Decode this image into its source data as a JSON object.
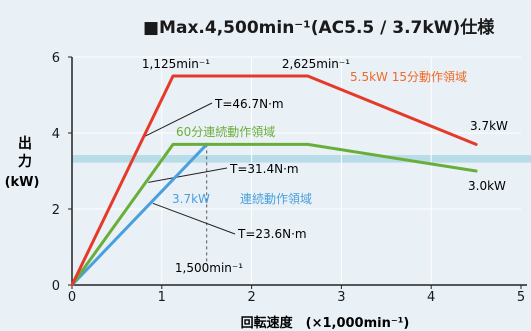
{
  "chart_data": {
    "type": "line",
    "title": "■Max.4,500min⁻¹(AC5.5 / 3.7kW)仕様",
    "ylabel_line1": "出",
    "ylabel_line2": "力",
    "ylabel_unit": "(kW)",
    "xlabel": "回転速度　(×1,000min⁻¹)",
    "xlim": [
      0,
      5
    ],
    "ylim": [
      0,
      6
    ],
    "x_ticks": [
      "0",
      "1",
      "2",
      "3",
      "4",
      "5"
    ],
    "y_ticks": [
      "0",
      "2",
      "4",
      "6"
    ],
    "grid": true,
    "colors": {
      "red": "#e53a2a",
      "green": "#6aae3a",
      "blue": "#4aa0dc",
      "label_red": "#ee6a28",
      "label_green": "#6aae3a",
      "label_blue": "#4aa0dc",
      "axis": "#222222",
      "grid": "#ffffff",
      "highlight": "#b8dde8"
    },
    "series": [
      {
        "name": "5.5kW 15分動作領域",
        "color": "red",
        "x": [
          0,
          1.125,
          2.625,
          4.5
        ],
        "y": [
          0,
          5.5,
          5.5,
          3.7
        ]
      },
      {
        "name": "60分連続動作領域",
        "color": "green",
        "x": [
          0,
          1.125,
          2.625,
          4.5
        ],
        "y": [
          0,
          3.7,
          3.7,
          3.0
        ]
      },
      {
        "name": "3.7kW 連続動作領域",
        "color": "blue",
        "x": [
          0,
          1.5
        ],
        "y": [
          0,
          3.7
        ]
      }
    ],
    "annotations": {
      "speed_1125": "1,125min⁻¹",
      "speed_2625": "2,625min⁻¹",
      "speed_1500": "1,500min⁻¹",
      "torque_red": "T=46.7N·m",
      "torque_green": "T=31.4N·m",
      "torque_blue": "T=23.6N·m",
      "end_red": "3.7kW",
      "end_green": "3.0kW",
      "label_red": "5.5kW 15分動作領域",
      "label_green": "60分連続動作領域",
      "label_blue_kw": "3.7kW",
      "label_blue_text": "連続動作領域"
    }
  }
}
